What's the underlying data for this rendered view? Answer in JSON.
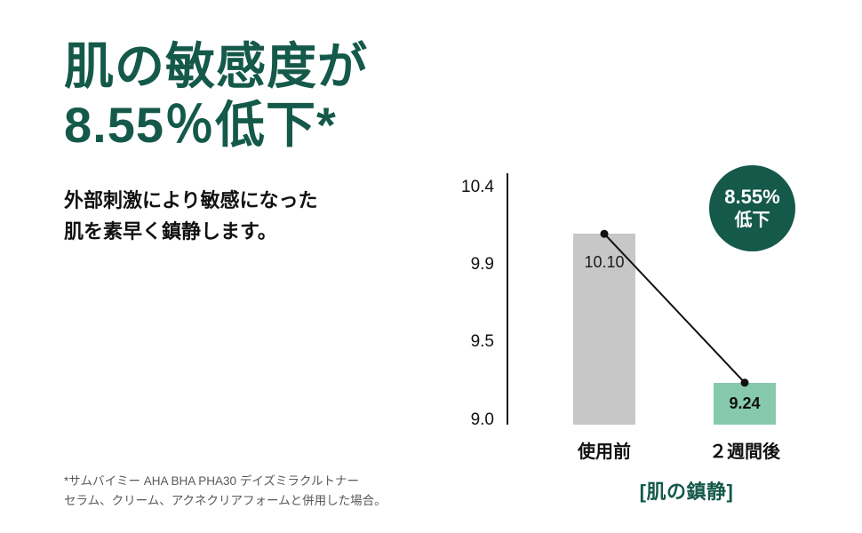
{
  "colors": {
    "brand_green": "#14594a",
    "bar_before": "#c7c7c7",
    "bar_after": "#87c9ad",
    "text_black": "#111111",
    "footnote_gray": "#595959"
  },
  "headline": {
    "line1": "肌の敏感度が",
    "line2": "8.55％低下*"
  },
  "subtext": {
    "line1": "外部刺激により敏感になった",
    "line2": "肌を素早く鎮静します。"
  },
  "footnote": {
    "line1": "*サムバイミー AHA BHA PHA30 デイズミラクルトナー",
    "line2": "セラム、クリーム、アクネクリアフォームと併用した場合。"
  },
  "badge": {
    "line1": "8.55%",
    "line2": "低下"
  },
  "chart_caption": "[肌の鎮静]",
  "chart_data": {
    "type": "bar",
    "categories": [
      "使用前",
      "２週間後"
    ],
    "values": [
      10.1,
      9.24
    ],
    "value_labels": [
      "10.10",
      "9.24"
    ],
    "yticks": [
      "10.4",
      "9.9",
      "9.5",
      "9.0"
    ],
    "ylim": [
      9.0,
      10.4
    ],
    "title": "[肌の鎮静]",
    "annotation": "8.55% 低下",
    "bar_colors": [
      "#c7c7c7",
      "#87c9ad"
    ],
    "grid": false,
    "legend": false,
    "trend_line": true
  }
}
